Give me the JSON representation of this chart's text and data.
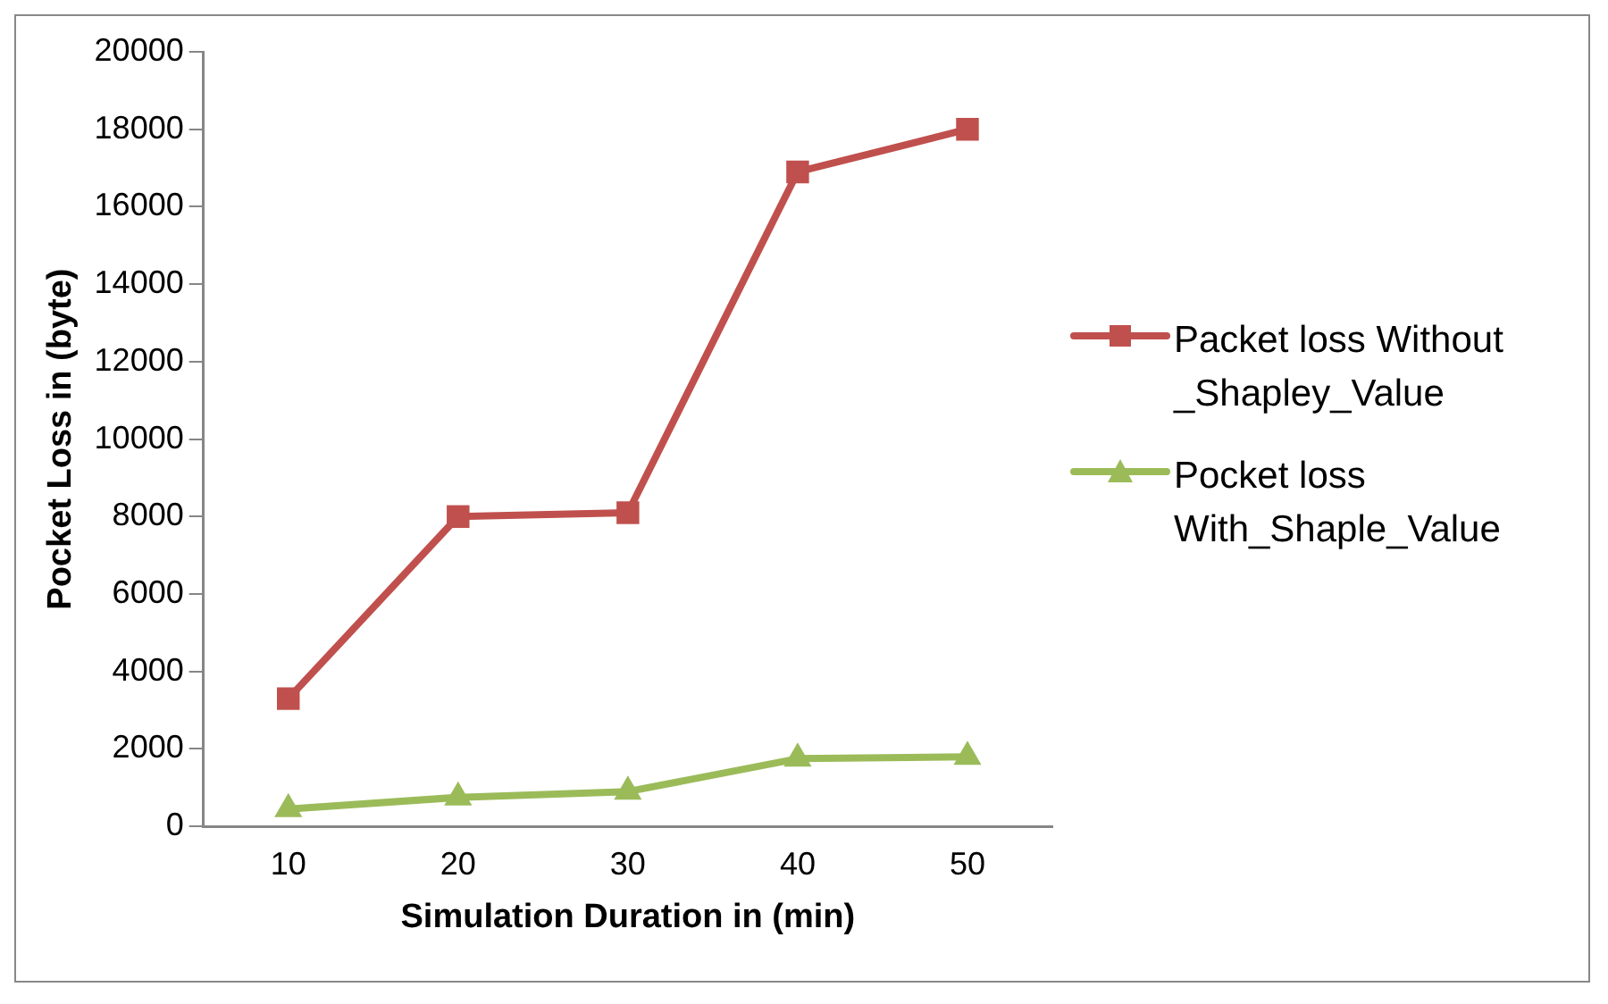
{
  "chart_data": {
    "type": "line",
    "xlabel": "Simulation Duration in (min)",
    "ylabel": "Pocket Loss in (byte)",
    "categories": [
      "10",
      "20",
      "30",
      "40",
      "50"
    ],
    "series": [
      {
        "name": "Packet loss Without _Shapley_Value",
        "color": "#c0504d",
        "marker": "square",
        "values": [
          3300,
          8000,
          8100,
          16900,
          18000
        ]
      },
      {
        "name": "Pocket loss With_Shaple_Value",
        "color": "#9bbb59",
        "marker": "triangle",
        "values": [
          450,
          750,
          900,
          1750,
          1800
        ]
      }
    ],
    "ylim": [
      0,
      20000
    ],
    "yticks": [
      0,
      2000,
      4000,
      6000,
      8000,
      10000,
      12000,
      14000,
      16000,
      18000,
      20000
    ],
    "grid": false,
    "legend": "right",
    "line_style": "solid"
  }
}
